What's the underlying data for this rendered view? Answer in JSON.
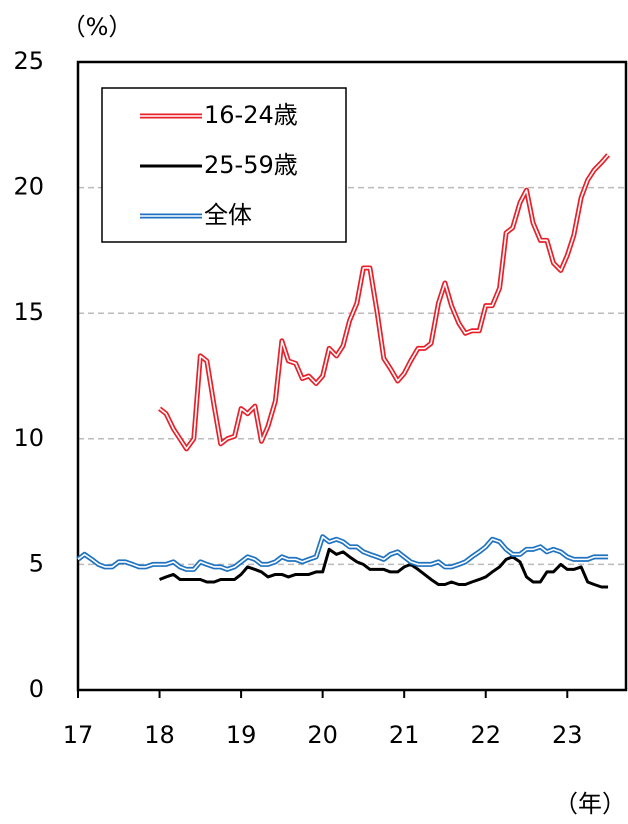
{
  "chart_data": {
    "type": "line",
    "y_label": "（%）",
    "x_label": "（年）",
    "x": [
      17,
      17.08,
      17.17,
      17.25,
      17.33,
      17.42,
      17.5,
      17.58,
      17.67,
      17.75,
      17.83,
      17.92,
      18,
      18.08,
      18.17,
      18.25,
      18.33,
      18.42,
      18.5,
      18.58,
      18.67,
      18.75,
      18.83,
      18.92,
      19,
      19.08,
      19.17,
      19.25,
      19.33,
      19.42,
      19.5,
      19.58,
      19.67,
      19.75,
      19.83,
      19.92,
      20,
      20.08,
      20.17,
      20.25,
      20.33,
      20.42,
      20.5,
      20.58,
      20.67,
      20.75,
      20.83,
      20.92,
      21,
      21.08,
      21.17,
      21.25,
      21.33,
      21.42,
      21.5,
      21.58,
      21.67,
      21.75,
      21.83,
      21.92,
      22,
      22.08,
      22.17,
      22.25,
      22.33,
      22.42,
      22.5,
      22.58,
      22.67,
      22.75,
      22.83,
      22.92,
      23,
      23.08,
      23.17,
      23.25,
      23.33,
      23.42,
      23.5
    ],
    "series": [
      {
        "name": "16-24歳",
        "color": "#e8202a",
        "double": true,
        "values": [
          null,
          null,
          null,
          null,
          null,
          null,
          null,
          null,
          null,
          null,
          null,
          null,
          11.2,
          11.0,
          10.4,
          10.0,
          9.6,
          10.0,
          13.3,
          13.1,
          11.3,
          9.8,
          10.0,
          10.1,
          11.2,
          11.0,
          11.3,
          9.9,
          10.5,
          11.5,
          13.9,
          13.1,
          13.0,
          12.4,
          12.5,
          12.2,
          12.5,
          13.6,
          13.3,
          13.7,
          14.7,
          15.4,
          16.8,
          16.8,
          15.0,
          13.2,
          12.8,
          12.3,
          12.6,
          13.1,
          13.6,
          13.6,
          13.8,
          15.4,
          16.2,
          15.3,
          14.6,
          14.2,
          14.3,
          14.3,
          15.3,
          15.3,
          16.0,
          18.2,
          18.4,
          19.4,
          19.9,
          18.6,
          17.9,
          17.9,
          17.0,
          16.7,
          17.3,
          18.1,
          19.6,
          20.3,
          20.7,
          21.0,
          21.3
        ]
      },
      {
        "name": "25-59歳",
        "color": "#000000",
        "double": false,
        "values": [
          null,
          null,
          null,
          null,
          null,
          null,
          null,
          null,
          null,
          null,
          null,
          null,
          4.4,
          4.5,
          4.6,
          4.4,
          4.4,
          4.4,
          4.4,
          4.3,
          4.3,
          4.4,
          4.4,
          4.4,
          4.6,
          4.9,
          4.8,
          4.7,
          4.5,
          4.6,
          4.6,
          4.5,
          4.6,
          4.6,
          4.6,
          4.7,
          4.7,
          5.6,
          5.4,
          5.5,
          5.3,
          5.1,
          5.0,
          4.8,
          4.8,
          4.8,
          4.7,
          4.7,
          4.9,
          5.0,
          4.8,
          4.6,
          4.4,
          4.2,
          4.2,
          4.3,
          4.2,
          4.2,
          4.3,
          4.4,
          4.5,
          4.7,
          4.9,
          5.2,
          5.3,
          5.1,
          4.5,
          4.3,
          4.3,
          4.7,
          4.7,
          5.0,
          4.8,
          4.8,
          4.9,
          4.3,
          4.2,
          4.1,
          4.1
        ]
      },
      {
        "name": "全体",
        "color": "#1f73c0",
        "double": true,
        "values": [
          5.2,
          5.4,
          5.2,
          5.0,
          4.9,
          4.9,
          5.1,
          5.1,
          5.0,
          4.9,
          4.9,
          5.0,
          5.0,
          5.0,
          5.1,
          4.9,
          4.8,
          4.8,
          5.1,
          5.0,
          4.9,
          4.9,
          4.8,
          4.9,
          5.1,
          5.3,
          5.2,
          5.0,
          5.0,
          5.1,
          5.3,
          5.2,
          5.2,
          5.1,
          5.2,
          5.3,
          6.1,
          5.9,
          6.0,
          5.9,
          5.7,
          5.7,
          5.5,
          5.4,
          5.3,
          5.2,
          5.4,
          5.5,
          5.3,
          5.1,
          5.0,
          5.0,
          5.0,
          5.1,
          4.9,
          4.9,
          5.0,
          5.1,
          5.3,
          5.5,
          5.7,
          6.0,
          5.9,
          5.6,
          5.4,
          5.4,
          5.6,
          5.6,
          5.7,
          5.5,
          5.6,
          5.5,
          5.3,
          5.2,
          5.2,
          5.2,
          5.3,
          5.3,
          5.3
        ]
      }
    ],
    "xlim": [
      17,
      23.72
    ],
    "xticks": [
      17,
      18,
      19,
      20,
      21,
      22,
      23
    ],
    "ylim": [
      0,
      25
    ],
    "yticks": [
      0,
      5,
      10,
      15,
      20,
      25
    ],
    "grid": true,
    "legend": "upper left"
  }
}
